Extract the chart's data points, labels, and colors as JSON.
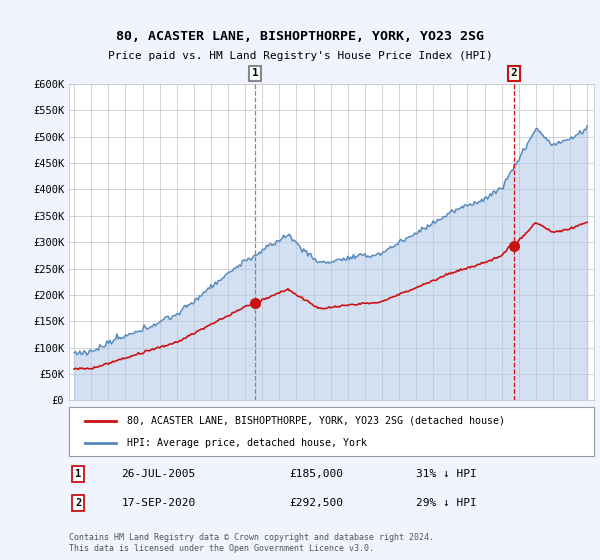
{
  "title": "80, ACASTER LANE, BISHOPTHORPE, YORK, YO23 2SG",
  "subtitle": "Price paid vs. HM Land Registry's House Price Index (HPI)",
  "bg_color": "#f0f4ff",
  "plot_bg_color": "#ffffff",
  "ylim": [
    0,
    600000
  ],
  "yticks": [
    0,
    50000,
    100000,
    150000,
    200000,
    250000,
    300000,
    350000,
    400000,
    450000,
    500000,
    550000,
    600000
  ],
  "ytick_labels": [
    "£0",
    "£50K",
    "£100K",
    "£150K",
    "£200K",
    "£250K",
    "£300K",
    "£350K",
    "£400K",
    "£450K",
    "£500K",
    "£550K",
    "£600K"
  ],
  "year_start": 1995,
  "year_end": 2025,
  "hpi_color": "#5588bb",
  "hpi_fill_color": "#aec8e8",
  "price_color": "#cc1111",
  "sale1_date": "26-JUL-2005",
  "sale1_price": 185000,
  "sale1_pct": "31%",
  "sale1_year": 2005.57,
  "sale2_date": "17-SEP-2020",
  "sale2_price": 292500,
  "sale2_pct": "29%",
  "sale2_year": 2020.72,
  "legend_house": "80, ACASTER LANE, BISHOPTHORPE, YORK, YO23 2SG (detached house)",
  "legend_hpi": "HPI: Average price, detached house, York",
  "footer": "Contains HM Land Registry data © Crown copyright and database right 2024.\nThis data is licensed under the Open Government Licence v3.0."
}
